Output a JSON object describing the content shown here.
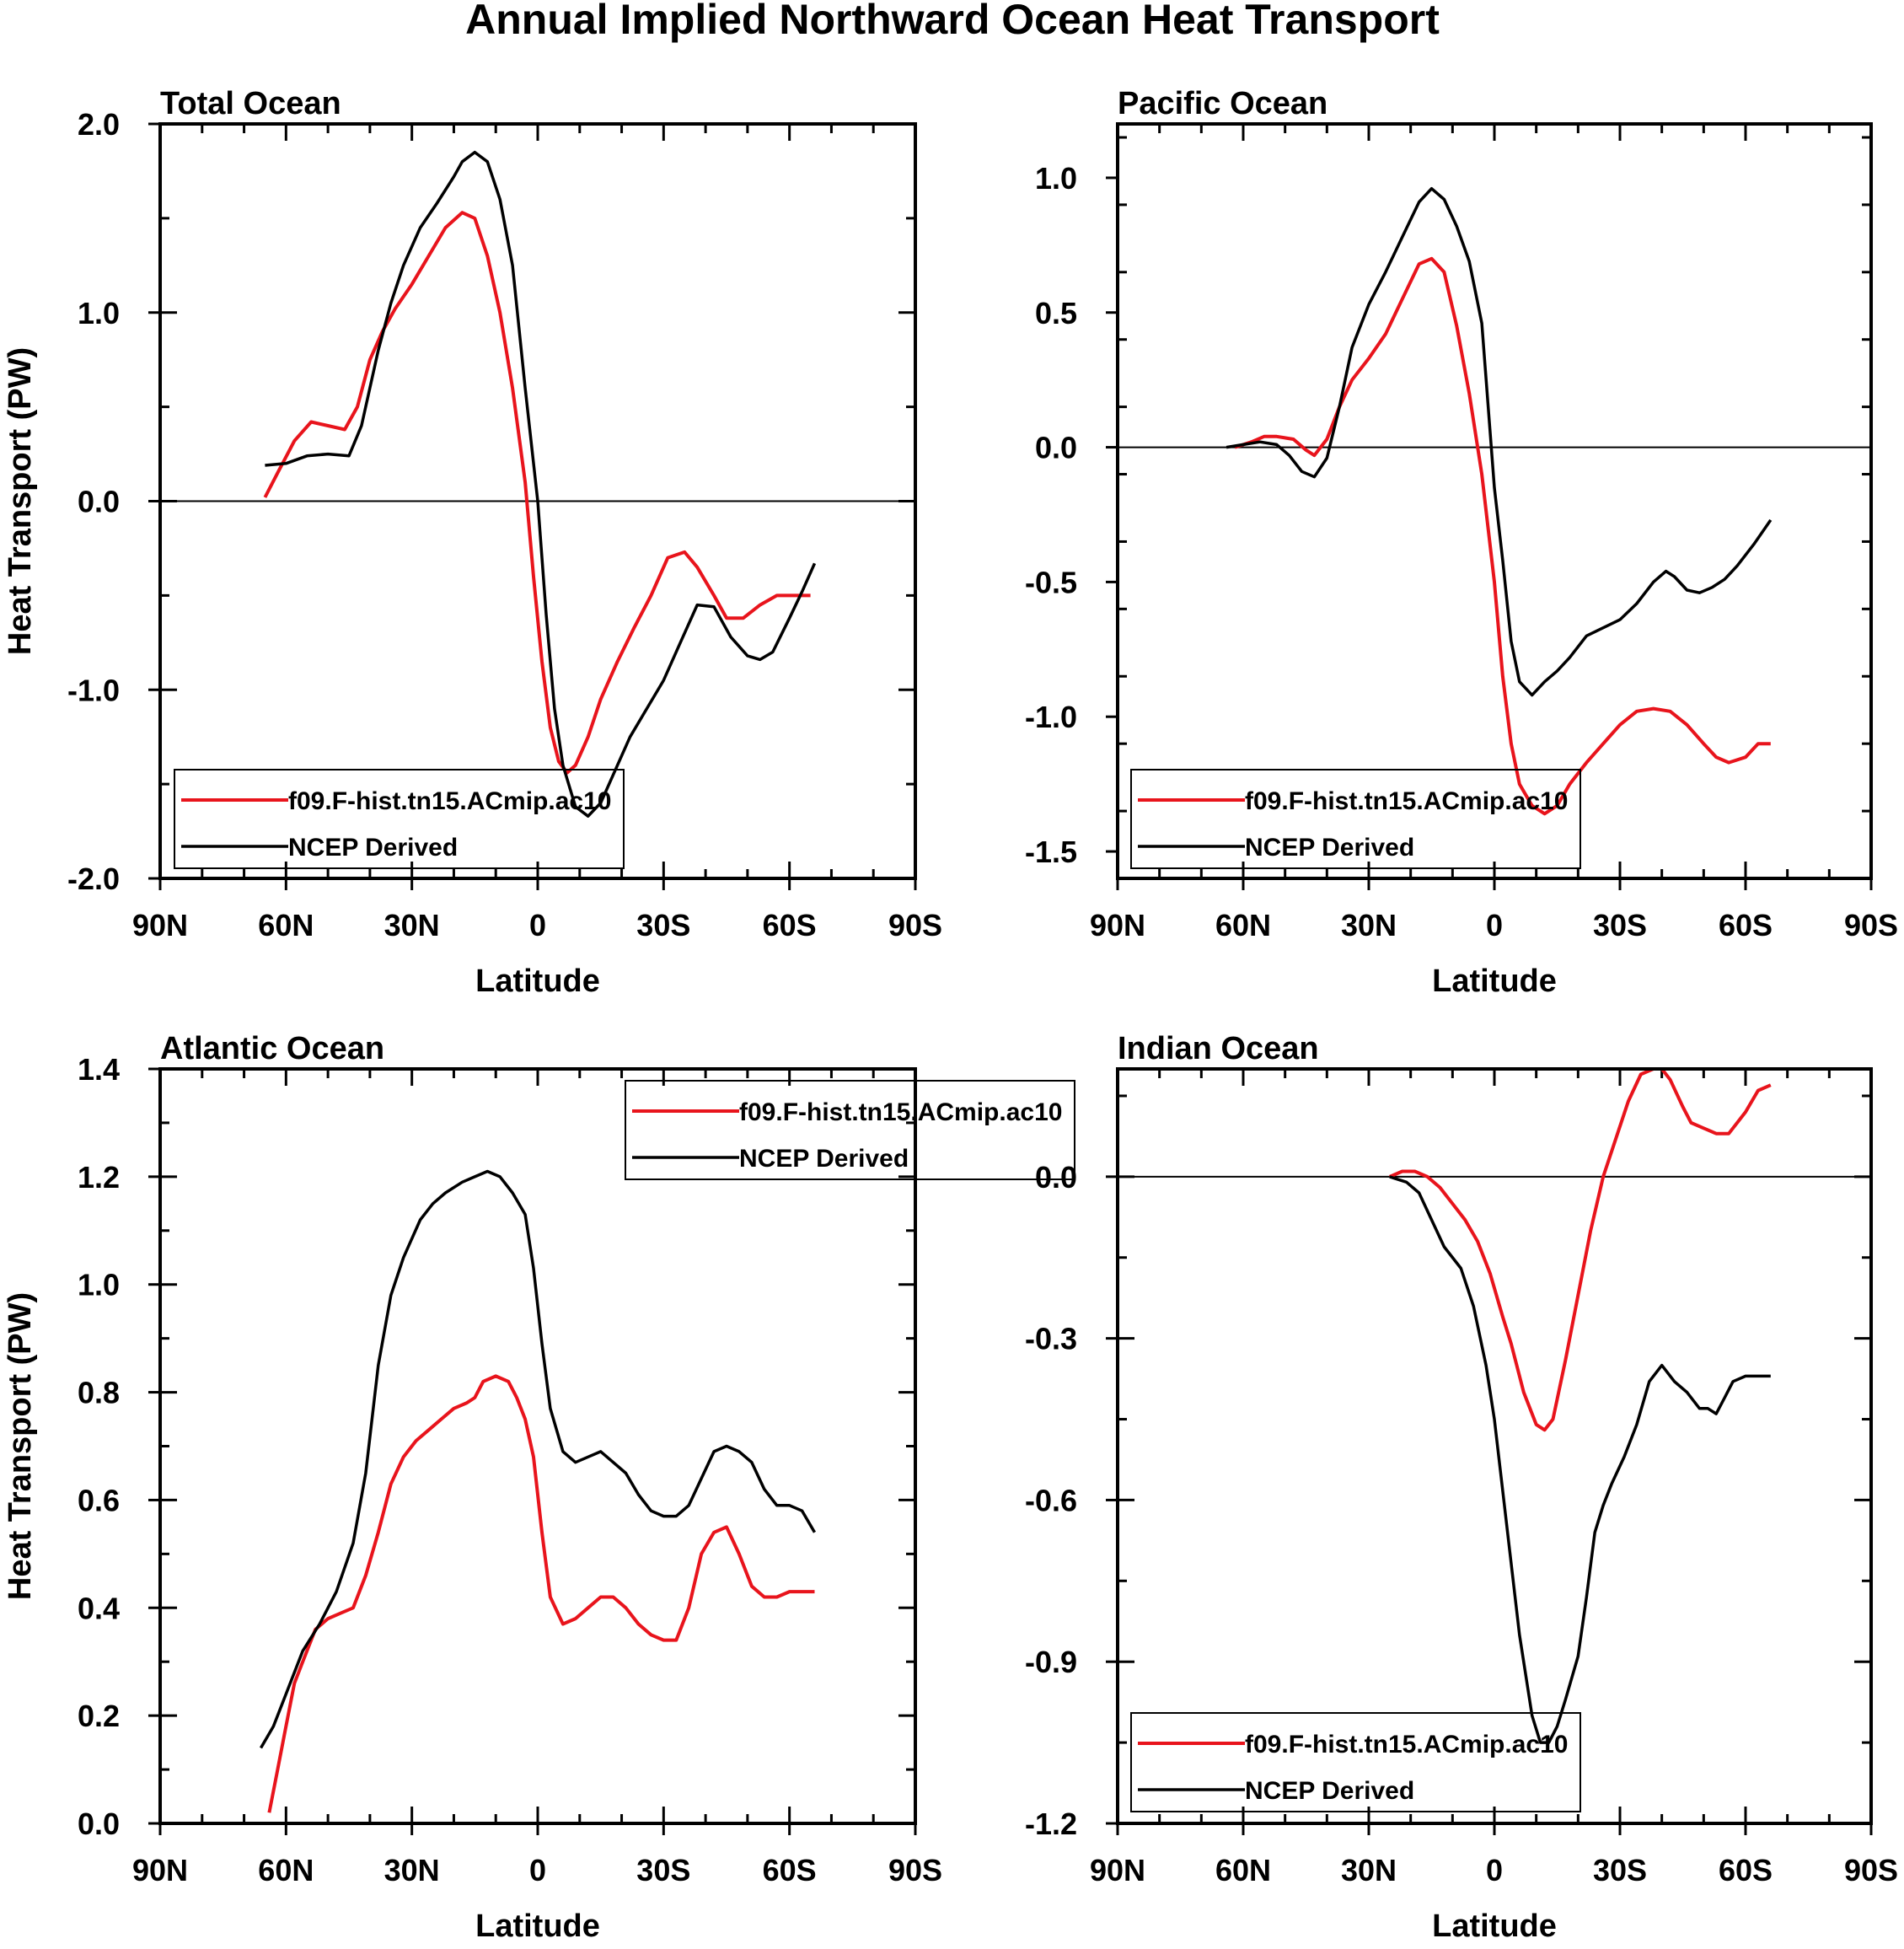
{
  "main_title": "Annual Implied Northward Ocean Heat Transport",
  "colors": {
    "model": "#e8141c",
    "ncep": "#000000",
    "frame": "#000000"
  },
  "chart_data": [
    {
      "type": "line",
      "title": "Total Ocean",
      "xlabel": "Latitude",
      "ylabel": "Heat Transport (PW)",
      "xlim": [
        90,
        -90
      ],
      "ylim": [
        -2.0,
        2.0
      ],
      "xticks": [
        90,
        60,
        30,
        0,
        -30,
        -60,
        -90
      ],
      "xtick_labels": [
        "90N",
        "60N",
        "30N",
        "0",
        "30S",
        "60S",
        "90S"
      ],
      "yticks": [
        -2.0,
        -1.0,
        0.0,
        1.0,
        2.0
      ],
      "ytick_labels": [
        "-2.0",
        "-1.0",
        "0.0",
        "1.0",
        "2.0"
      ],
      "zero_line": true,
      "legend": "bottom-left",
      "series": [
        {
          "name": "f09.F-hist.tn15.ACmip.ac10",
          "color": "#e8141c",
          "x": [
            65,
            62,
            58,
            54,
            50,
            46,
            43,
            40,
            37,
            34,
            30,
            26,
            22,
            18,
            15,
            12,
            9,
            6,
            3,
            1,
            -1,
            -3,
            -5,
            -7,
            -9,
            -12,
            -15,
            -19,
            -23,
            -27,
            -31,
            -35,
            -38,
            -42,
            -45,
            -49,
            -53,
            -57,
            -61,
            -65
          ],
          "y": [
            0.02,
            0.15,
            0.32,
            0.42,
            0.4,
            0.38,
            0.5,
            0.75,
            0.9,
            1.02,
            1.15,
            1.3,
            1.45,
            1.53,
            1.5,
            1.3,
            1.0,
            0.6,
            0.1,
            -0.4,
            -0.85,
            -1.2,
            -1.38,
            -1.44,
            -1.4,
            -1.25,
            -1.05,
            -0.85,
            -0.67,
            -0.5,
            -0.3,
            -0.27,
            -0.35,
            -0.5,
            -0.62,
            -0.62,
            -0.55,
            -0.5,
            -0.5,
            -0.5
          ]
        },
        {
          "name": "NCEP Derived",
          "color": "#000000",
          "x": [
            65,
            60,
            55,
            50,
            45,
            42,
            38,
            35,
            32,
            28,
            24,
            20,
            18,
            15,
            12,
            9,
            6,
            3,
            0,
            -2,
            -4,
            -6,
            -9,
            -12,
            -15,
            -18,
            -22,
            -26,
            -30,
            -34,
            -38,
            -42,
            -46,
            -50,
            -53,
            -56,
            -60,
            -63,
            -66
          ],
          "y": [
            0.19,
            0.2,
            0.24,
            0.25,
            0.24,
            0.4,
            0.8,
            1.05,
            1.25,
            1.45,
            1.58,
            1.72,
            1.8,
            1.85,
            1.8,
            1.6,
            1.25,
            0.6,
            0.0,
            -0.6,
            -1.1,
            -1.4,
            -1.62,
            -1.67,
            -1.6,
            -1.45,
            -1.25,
            -1.1,
            -0.95,
            -0.75,
            -0.55,
            -0.56,
            -0.72,
            -0.82,
            -0.84,
            -0.8,
            -0.62,
            -0.48,
            -0.33
          ]
        }
      ]
    },
    {
      "type": "line",
      "title": "Pacific Ocean",
      "xlabel": "Latitude",
      "ylabel": "",
      "xlim": [
        90,
        -90
      ],
      "ylim": [
        -1.6,
        1.2
      ],
      "xticks": [
        90,
        60,
        30,
        0,
        -30,
        -60,
        -90
      ],
      "xtick_labels": [
        "90N",
        "60N",
        "30N",
        "0",
        "30S",
        "60S",
        "90S"
      ],
      "yticks": [
        -1.5,
        -1.0,
        -0.5,
        0.0,
        0.5,
        1.0
      ],
      "ytick_labels": [
        "-1.5",
        "-1.0",
        "-0.5",
        "0.0",
        "0.5",
        "1.0"
      ],
      "zero_line": true,
      "legend": "bottom-left",
      "series": [
        {
          "name": "f09.F-hist.tn15.ACmip.ac10",
          "color": "#e8141c",
          "x": [
            62,
            58,
            55,
            52,
            48,
            45,
            43,
            40,
            37,
            34,
            30,
            26,
            22,
            18,
            15,
            12,
            9,
            6,
            3,
            0,
            -2,
            -4,
            -6,
            -9,
            -12,
            -15,
            -18,
            -22,
            -26,
            -30,
            -34,
            -38,
            -42,
            -46,
            -50,
            -53,
            -56,
            -60,
            -63,
            -66
          ],
          "y": [
            0.0,
            0.02,
            0.04,
            0.04,
            0.03,
            -0.01,
            -0.03,
            0.03,
            0.15,
            0.25,
            0.33,
            0.42,
            0.55,
            0.68,
            0.7,
            0.65,
            0.45,
            0.2,
            -0.1,
            -0.5,
            -0.85,
            -1.1,
            -1.25,
            -1.33,
            -1.36,
            -1.33,
            -1.25,
            -1.17,
            -1.1,
            -1.03,
            -0.98,
            -0.97,
            -0.98,
            -1.03,
            -1.1,
            -1.15,
            -1.17,
            -1.15,
            -1.1,
            -1.1
          ]
        },
        {
          "name": "NCEP Derived",
          "color": "#000000",
          "x": [
            64,
            60,
            56,
            52,
            49,
            46,
            43,
            40,
            37,
            34,
            30,
            26,
            22,
            18,
            15,
            12,
            9,
            6,
            3,
            0,
            -2,
            -4,
            -6,
            -9,
            -12,
            -15,
            -18,
            -22,
            -26,
            -30,
            -34,
            -38,
            -41,
            -43,
            -46,
            -49,
            -52,
            -55,
            -58,
            -62,
            -66
          ],
          "y": [
            0.0,
            0.01,
            0.02,
            0.01,
            -0.03,
            -0.09,
            -0.11,
            -0.04,
            0.15,
            0.37,
            0.53,
            0.65,
            0.78,
            0.91,
            0.96,
            0.92,
            0.82,
            0.69,
            0.46,
            -0.15,
            -0.42,
            -0.72,
            -0.87,
            -0.92,
            -0.87,
            -0.83,
            -0.78,
            -0.7,
            -0.67,
            -0.64,
            -0.58,
            -0.5,
            -0.46,
            -0.48,
            -0.53,
            -0.54,
            -0.52,
            -0.49,
            -0.44,
            -0.36,
            -0.27
          ]
        }
      ]
    },
    {
      "type": "line",
      "title": "Atlantic Ocean",
      "xlabel": "Latitude",
      "ylabel": "Heat Transport (PW)",
      "xlim": [
        90,
        -90
      ],
      "ylim": [
        0.0,
        1.4
      ],
      "xticks": [
        90,
        60,
        30,
        0,
        -30,
        -60,
        -90
      ],
      "xtick_labels": [
        "90N",
        "60N",
        "30N",
        "0",
        "30S",
        "60S",
        "90S"
      ],
      "yticks": [
        0.0,
        0.2,
        0.4,
        0.6,
        0.8,
        1.0,
        1.2,
        1.4
      ],
      "ytick_labels": [
        "0.0",
        "0.2",
        "0.4",
        "0.6",
        "0.8",
        "1.0",
        "1.2",
        "1.4"
      ],
      "zero_line": false,
      "legend": "top-right",
      "series": [
        {
          "name": "f09.F-hist.tn15.ACmip.ac10",
          "color": "#e8141c",
          "x": [
            64,
            62,
            60,
            58,
            56,
            53,
            50,
            47,
            44,
            41,
            38,
            35,
            32,
            29,
            26,
            23,
            20,
            17,
            15,
            13,
            10,
            7,
            5,
            3,
            1,
            -1,
            -3,
            -6,
            -9,
            -12,
            -15,
            -18,
            -21,
            -24,
            -27,
            -30,
            -33,
            -36,
            -39,
            -42,
            -45,
            -48,
            -51,
            -54,
            -57,
            -60,
            -63,
            -66
          ],
          "y": [
            0.02,
            0.1,
            0.18,
            0.26,
            0.3,
            0.36,
            0.38,
            0.39,
            0.4,
            0.46,
            0.54,
            0.63,
            0.68,
            0.71,
            0.73,
            0.75,
            0.77,
            0.78,
            0.79,
            0.82,
            0.83,
            0.82,
            0.79,
            0.75,
            0.68,
            0.54,
            0.42,
            0.37,
            0.38,
            0.4,
            0.42,
            0.42,
            0.4,
            0.37,
            0.35,
            0.34,
            0.34,
            0.4,
            0.5,
            0.54,
            0.55,
            0.5,
            0.44,
            0.42,
            0.42,
            0.43,
            0.43,
            0.43
          ]
        },
        {
          "name": "NCEP Derived",
          "color": "#000000",
          "x": [
            66,
            63,
            60,
            56,
            52,
            48,
            44,
            41,
            38,
            35,
            32,
            28,
            25,
            22,
            18,
            15,
            12,
            9,
            6,
            3,
            1,
            -1,
            -3,
            -6,
            -9,
            -12,
            -15,
            -18,
            -21,
            -24,
            -27,
            -30,
            -33,
            -36,
            -39,
            -42,
            -45,
            -48,
            -51,
            -54,
            -57,
            -60,
            -63,
            -66
          ],
          "y": [
            0.14,
            0.18,
            0.24,
            0.32,
            0.37,
            0.43,
            0.52,
            0.65,
            0.85,
            0.98,
            1.05,
            1.12,
            1.15,
            1.17,
            1.19,
            1.2,
            1.21,
            1.2,
            1.17,
            1.13,
            1.03,
            0.89,
            0.77,
            0.69,
            0.67,
            0.68,
            0.69,
            0.67,
            0.65,
            0.61,
            0.58,
            0.57,
            0.57,
            0.59,
            0.64,
            0.69,
            0.7,
            0.69,
            0.67,
            0.62,
            0.59,
            0.59,
            0.58,
            0.54
          ]
        }
      ]
    },
    {
      "type": "line",
      "title": "Indian Ocean",
      "xlabel": "Latitude",
      "ylabel": "",
      "xlim": [
        90,
        -90
      ],
      "ylim": [
        -1.2,
        0.2
      ],
      "xticks": [
        90,
        60,
        30,
        0,
        -30,
        -60,
        -90
      ],
      "xtick_labels": [
        "90N",
        "60N",
        "30N",
        "0",
        "30S",
        "60S",
        "90S"
      ],
      "yticks": [
        -1.2,
        -0.9,
        -0.6,
        -0.3,
        0.0
      ],
      "ytick_labels": [
        "-1.2",
        "-0.9",
        "-0.6",
        "-0.3",
        "0.0"
      ],
      "zero_line": true,
      "legend": "bottom-left",
      "series": [
        {
          "name": "f09.F-hist.tn15.ACmip.ac10",
          "color": "#e8141c",
          "x": [
            25,
            22,
            19,
            16,
            13,
            10,
            7,
            4,
            1,
            -2,
            -4,
            -7,
            -10,
            -12,
            -14,
            -17,
            -20,
            -23,
            -26,
            -29,
            -32,
            -35,
            -38,
            -40,
            -42,
            -45,
            -47,
            -50,
            -53,
            -56,
            -60,
            -63,
            -66
          ],
          "y": [
            0.0,
            0.01,
            0.01,
            0.0,
            -0.02,
            -0.05,
            -0.08,
            -0.12,
            -0.18,
            -0.26,
            -0.31,
            -0.4,
            -0.46,
            -0.47,
            -0.45,
            -0.34,
            -0.22,
            -0.1,
            0.0,
            0.07,
            0.14,
            0.19,
            0.2,
            0.2,
            0.18,
            0.13,
            0.1,
            0.09,
            0.08,
            0.08,
            0.12,
            0.16,
            0.17
          ]
        },
        {
          "name": "NCEP Derived",
          "color": "#000000",
          "x": [
            25,
            21,
            18,
            15,
            12,
            8,
            5,
            2,
            0,
            -3,
            -6,
            -9,
            -11,
            -13,
            -15,
            -17,
            -20,
            -22,
            -24,
            -26,
            -28,
            -31,
            -34,
            -37,
            -40,
            -43,
            -46,
            -49,
            -51,
            -53,
            -55,
            -57,
            -60,
            -66
          ],
          "y": [
            0.0,
            -0.01,
            -0.03,
            -0.08,
            -0.13,
            -0.17,
            -0.24,
            -0.35,
            -0.45,
            -0.65,
            -0.85,
            -1.0,
            -1.05,
            -1.05,
            -1.02,
            -0.97,
            -0.89,
            -0.78,
            -0.66,
            -0.61,
            -0.57,
            -0.52,
            -0.46,
            -0.38,
            -0.35,
            -0.38,
            -0.4,
            -0.43,
            -0.43,
            -0.44,
            -0.41,
            -0.38,
            -0.37,
            -0.37
          ]
        }
      ]
    }
  ]
}
